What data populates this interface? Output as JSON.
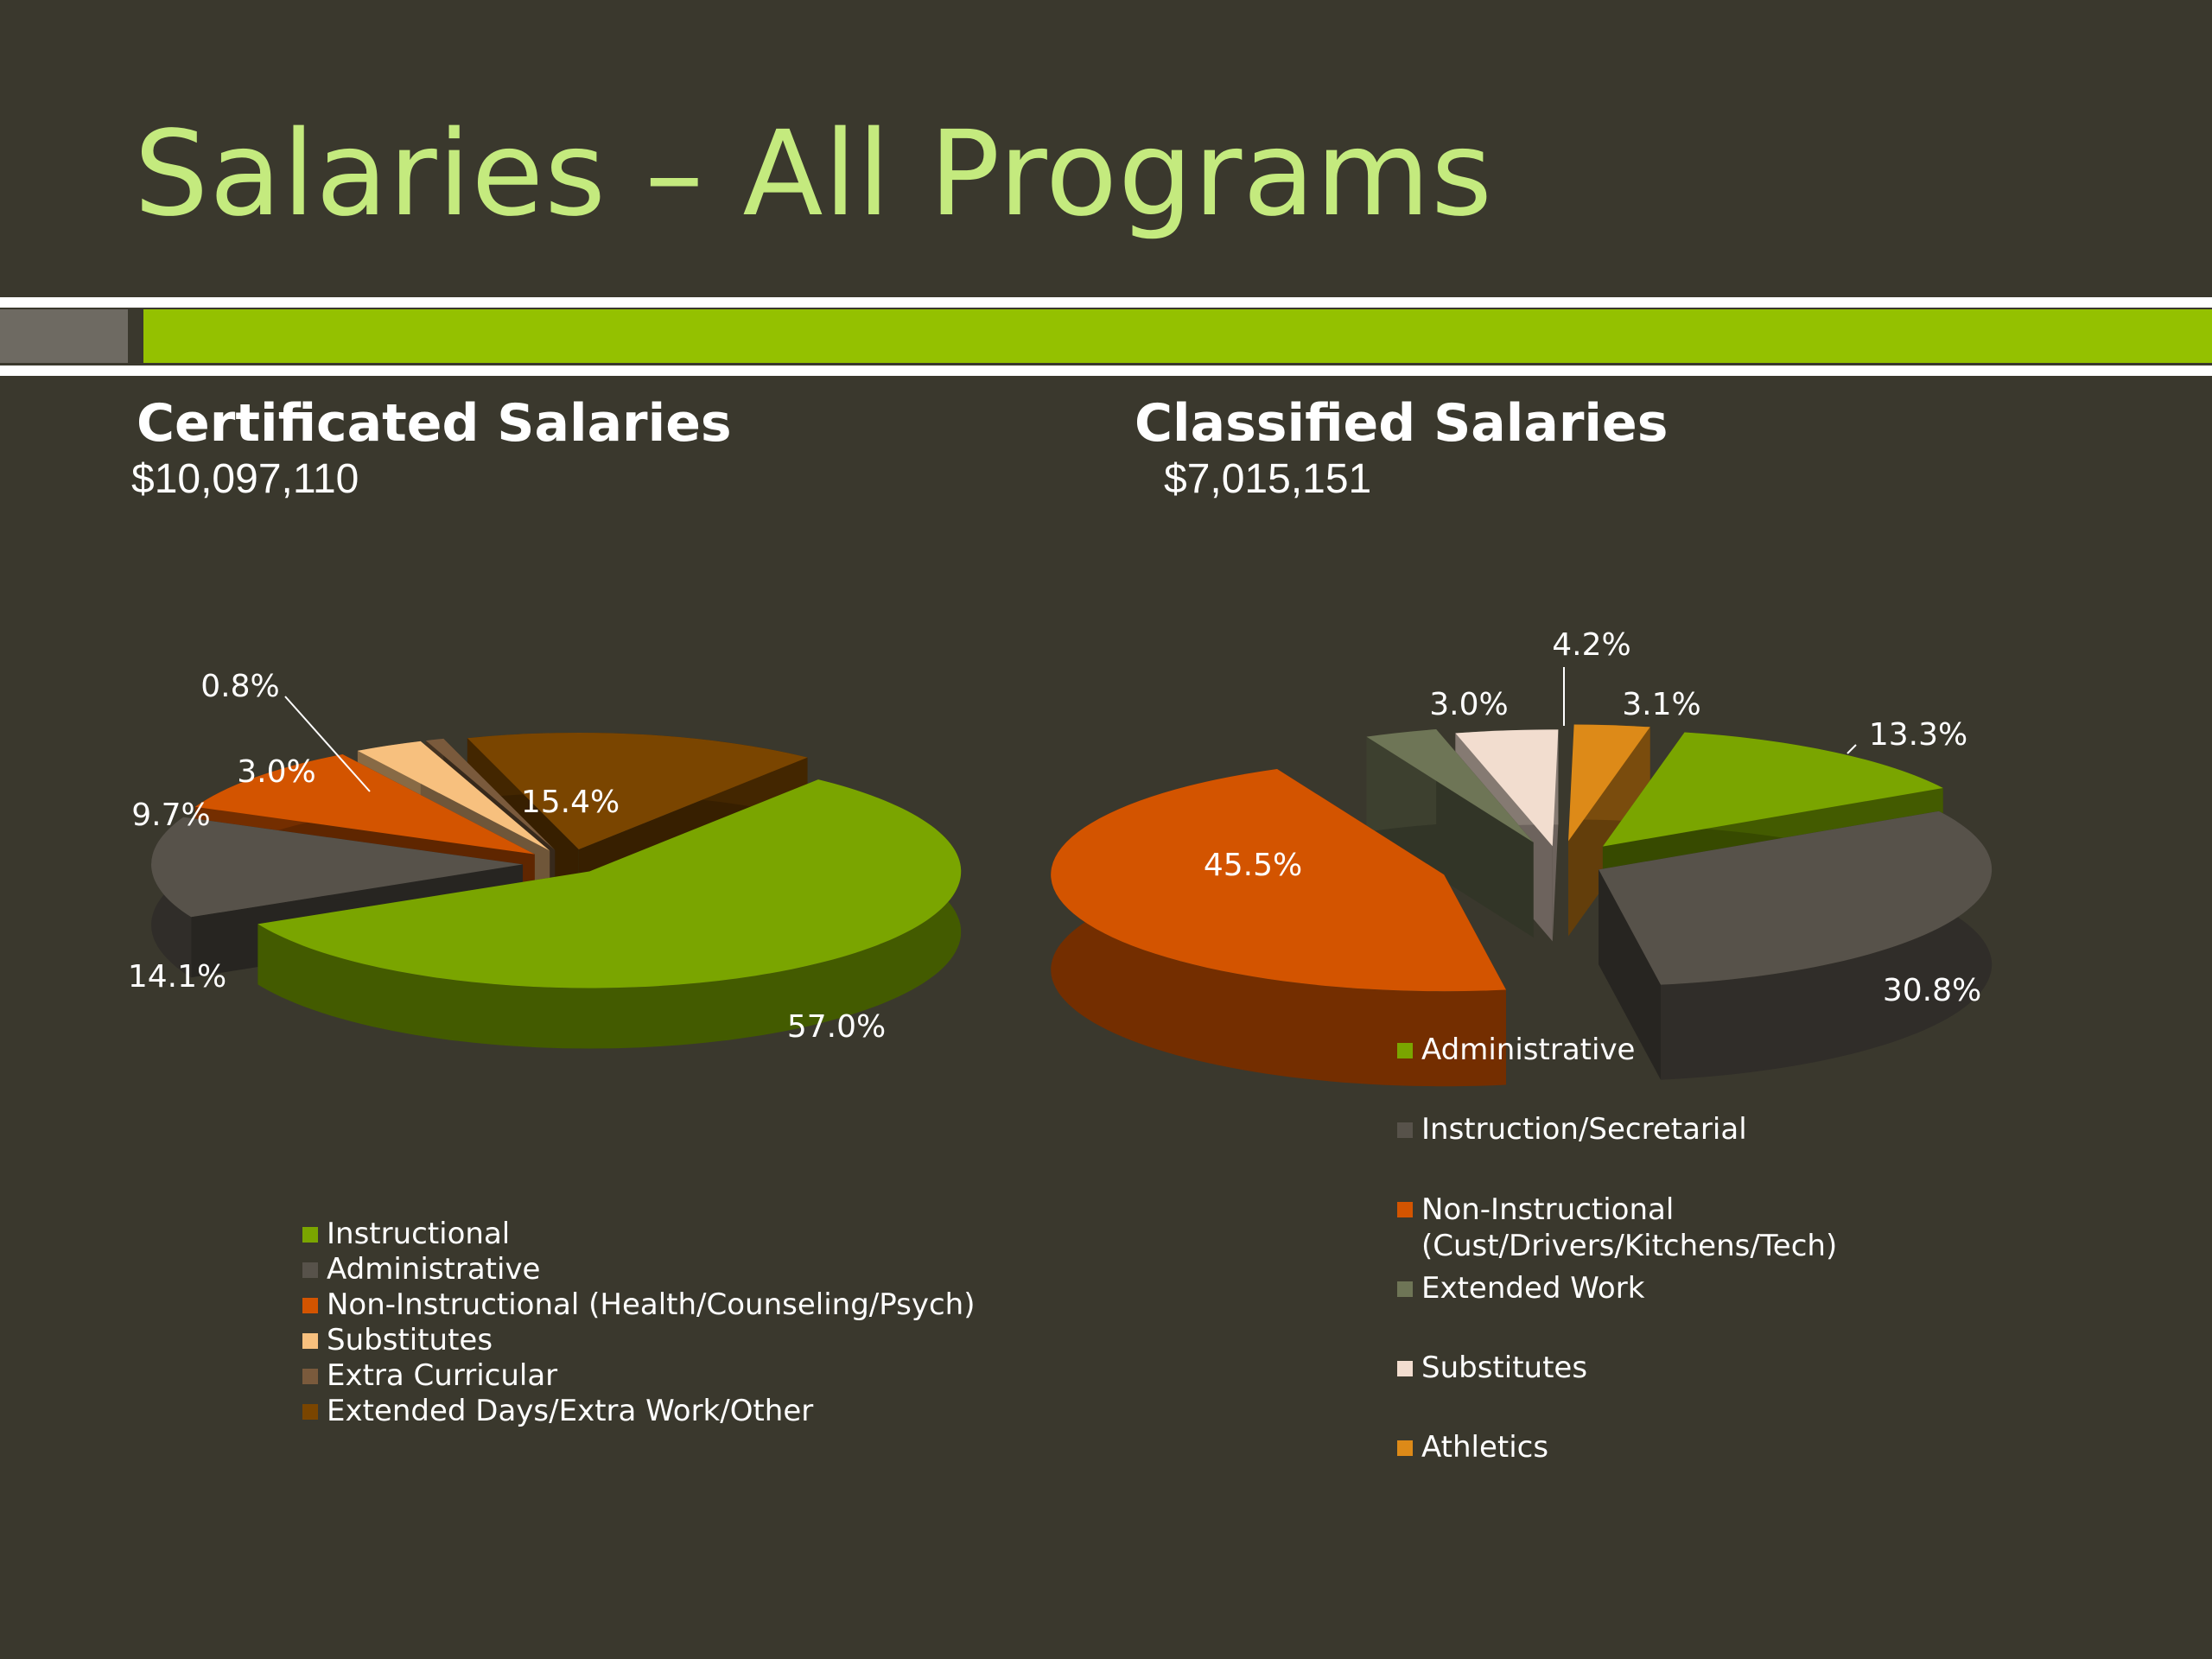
{
  "slide": {
    "title": "Salaries – All Programs"
  },
  "certificated": {
    "heading": "Certificated Salaries",
    "amount": "$10,097,110"
  },
  "classified": {
    "heading": "Classified Salaries",
    "amount": "$7,015,151"
  },
  "colors": {
    "background": "#3a382d",
    "title": "#c4ea7e",
    "accent_green": "#94c100",
    "accent_gray": "#6e6a62"
  },
  "chart_data": [
    {
      "type": "pie",
      "style": "3d-exploded",
      "title": "",
      "legend_position": "bottom",
      "slices": [
        {
          "label": "Instructional",
          "value": 57.0,
          "display": "57.0%",
          "color": "#7aa500"
        },
        {
          "label": "Administrative",
          "value": 14.1,
          "display": "14.1%",
          "color": "#57524a"
        },
        {
          "label": "Non-Instructional (Health/Counseling/Psych)",
          "value": 9.7,
          "display": "9.7%",
          "color": "#d35400"
        },
        {
          "label": "Substitutes",
          "value": 3.0,
          "display": "3.0%",
          "color": "#f7c07e"
        },
        {
          "label": "Extra Curricular",
          "value": 0.8,
          "display": "0.8%",
          "color": "#7a5a3c"
        },
        {
          "label": "Extended Days/Extra Work/Other",
          "value": 15.4,
          "display": "15.4%",
          "color": "#7a4500"
        }
      ]
    },
    {
      "type": "pie",
      "style": "3d-exploded",
      "title": "",
      "legend_position": "bottom-right",
      "slices": [
        {
          "label": "Administrative",
          "value": 13.3,
          "display": "13.3%",
          "color": "#7aa500"
        },
        {
          "label": "Instruction/Secretarial",
          "value": 30.8,
          "display": "30.8%",
          "color": "#57524a"
        },
        {
          "label": "Non-Instructional\n(Cust/Drivers/Kitchens/Tech)",
          "value": 45.5,
          "display": "45.5%",
          "color": "#d35400"
        },
        {
          "label": "Extended Work",
          "value": 3.0,
          "display": "3.0%",
          "color": "#6e7556"
        },
        {
          "label": "Substitutes",
          "value": 4.2,
          "display": "4.2%",
          "color": "#f2ddcf"
        },
        {
          "label": "Athletics",
          "value": 3.1,
          "display": "3.1%",
          "color": "#dd8a18"
        }
      ]
    }
  ]
}
